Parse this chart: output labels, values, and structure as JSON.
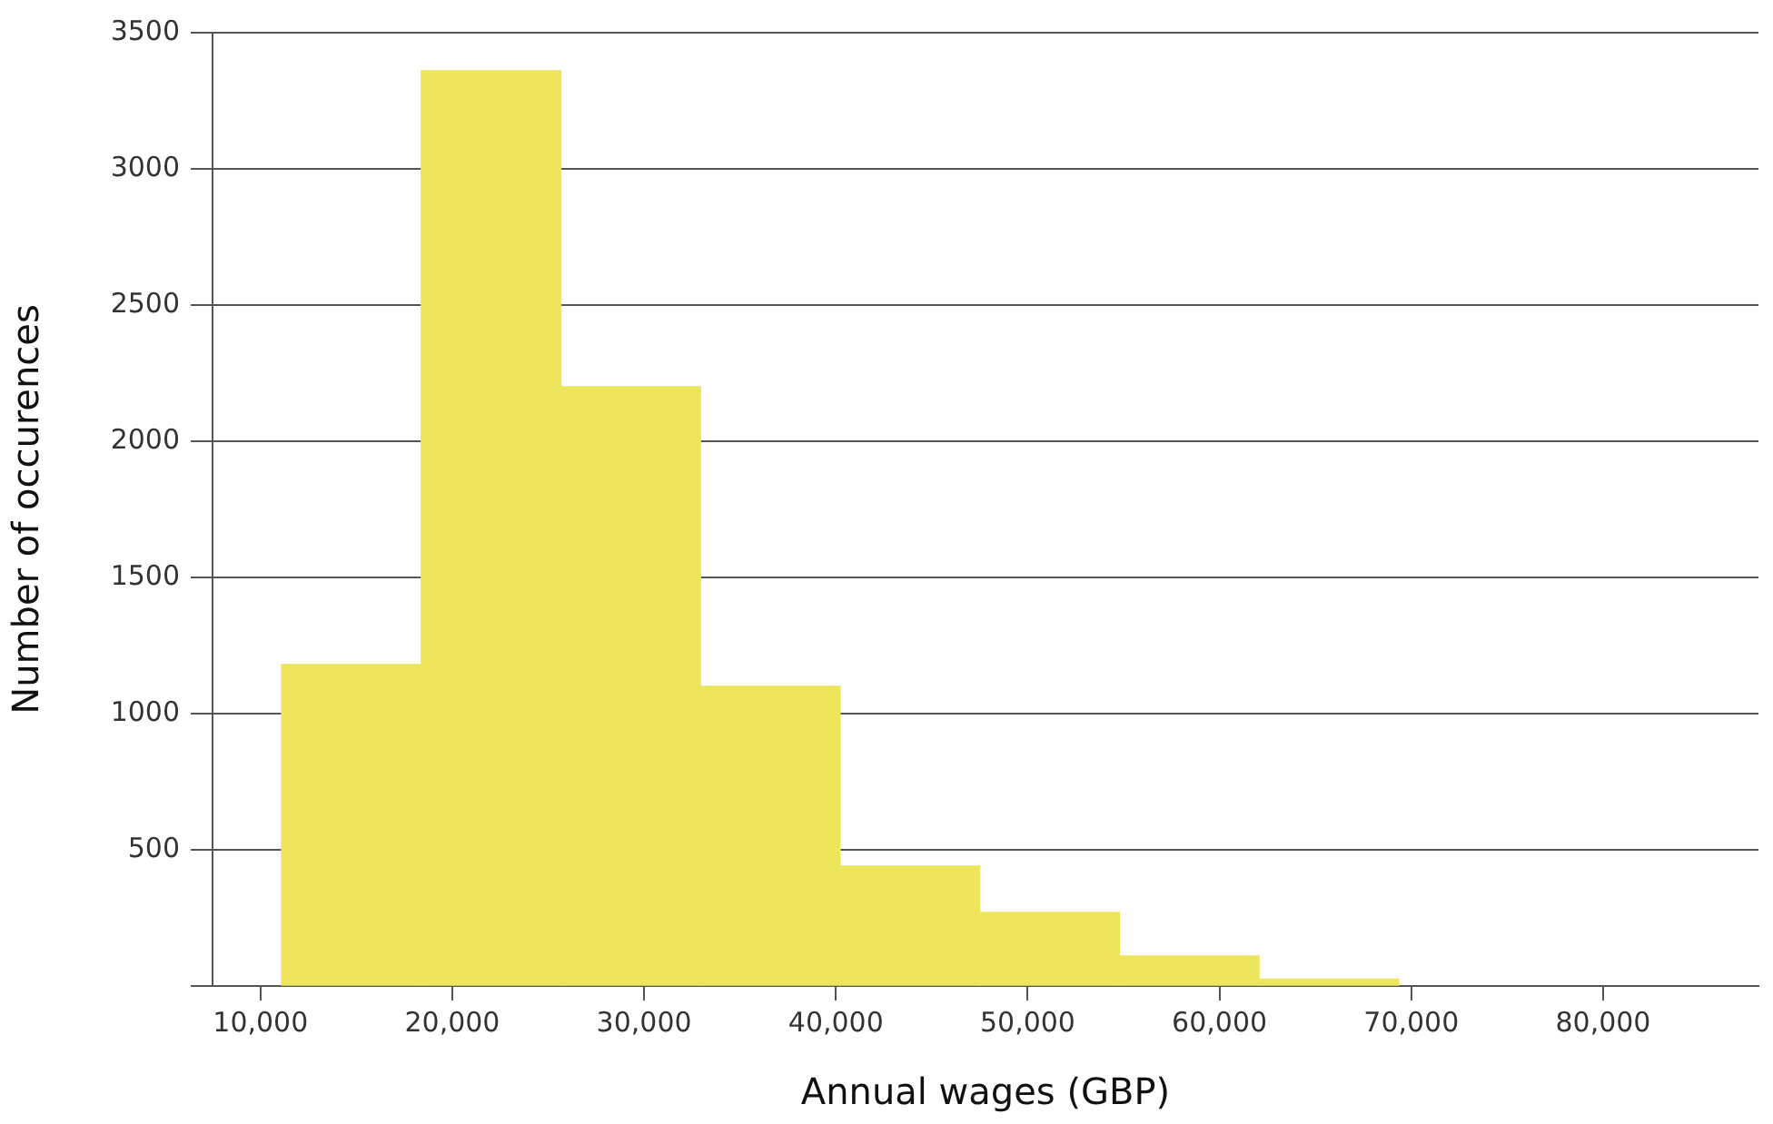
{
  "chart_data": {
    "type": "histogram",
    "xlabel": "Annual wages (GBP)",
    "ylabel": "Number of occurences",
    "bins": [
      11100,
      18380,
      25660,
      32940,
      40220,
      47500,
      54780,
      62060,
      69340
    ],
    "values": [
      1180,
      3360,
      2200,
      1100,
      440,
      270,
      110,
      25
    ],
    "color": "#ede55b",
    "xlim": [
      7500,
      88100
    ],
    "xticks": [
      {
        "value": 10000,
        "label": "10,000"
      },
      {
        "value": 20000,
        "label": "20,000"
      },
      {
        "value": 30000,
        "label": "30,000"
      },
      {
        "value": 40000,
        "label": "40,000"
      },
      {
        "value": 50000,
        "label": "50,000"
      },
      {
        "value": 60000,
        "label": "60,000"
      },
      {
        "value": 70000,
        "label": "70,000"
      },
      {
        "value": 80000,
        "label": "80,000"
      }
    ],
    "ylim": [
      0,
      3500
    ],
    "yticks": [
      {
        "value": 0,
        "label": null
      },
      500,
      1000,
      1500,
      2000,
      2500,
      3000,
      3500
    ],
    "grid": "y",
    "legend": false
  }
}
